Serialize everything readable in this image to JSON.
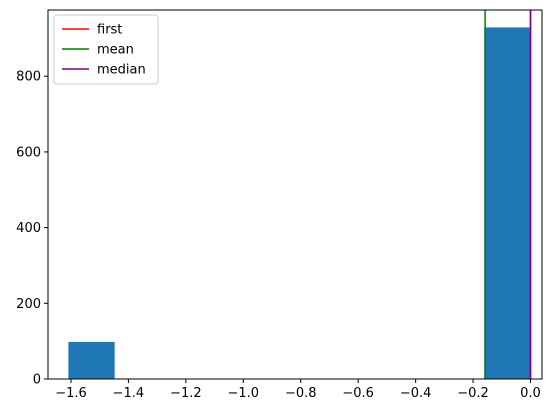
{
  "chart_data": {
    "type": "bar",
    "title": "",
    "xlabel": "",
    "ylabel": "",
    "xlim": [
      -1.68,
      0.04
    ],
    "ylim": [
      0,
      975
    ],
    "grid": false,
    "bar_color": "#1f77b4",
    "bins": [
      {
        "x_start": -1.609,
        "x_end": -1.448,
        "count": 98
      },
      {
        "x_start": -1.448,
        "x_end": -1.287,
        "count": 0
      },
      {
        "x_start": -1.287,
        "x_end": -1.126,
        "count": 0
      },
      {
        "x_start": -1.126,
        "x_end": -0.965,
        "count": 0
      },
      {
        "x_start": -0.965,
        "x_end": -0.805,
        "count": 0
      },
      {
        "x_start": -0.805,
        "x_end": -0.644,
        "count": 0
      },
      {
        "x_start": -0.644,
        "x_end": -0.483,
        "count": 0
      },
      {
        "x_start": -0.483,
        "x_end": -0.322,
        "count": 0
      },
      {
        "x_start": -0.322,
        "x_end": -0.161,
        "count": 0
      },
      {
        "x_start": -0.161,
        "x_end": 0.0,
        "count": 929
      }
    ],
    "x_ticks": [
      {
        "value": -1.6,
        "label": "−1.6"
      },
      {
        "value": -1.4,
        "label": "−1.4"
      },
      {
        "value": -1.2,
        "label": "−1.2"
      },
      {
        "value": -1.0,
        "label": "−1.0"
      },
      {
        "value": -0.8,
        "label": "−0.8"
      },
      {
        "value": -0.6,
        "label": "−0.6"
      },
      {
        "value": -0.4,
        "label": "−0.4"
      },
      {
        "value": -0.2,
        "label": "−0.2"
      },
      {
        "value": 0.0,
        "label": "0.0"
      }
    ],
    "y_ticks": [
      {
        "value": 0,
        "label": "0"
      },
      {
        "value": 200,
        "label": "200"
      },
      {
        "value": 400,
        "label": "400"
      },
      {
        "value": 600,
        "label": "600"
      },
      {
        "value": 800,
        "label": "800"
      }
    ],
    "vlines": [
      {
        "name": "first",
        "x": 0.0,
        "color": "#ff0000"
      },
      {
        "name": "mean",
        "x": -0.158,
        "color": "#008000"
      },
      {
        "name": "median",
        "x": 0.0,
        "color": "#800080"
      }
    ],
    "legend": {
      "placement": "top-left",
      "entries": [
        {
          "label": "first",
          "color": "#ff0000"
        },
        {
          "label": "mean",
          "color": "#008000"
        },
        {
          "label": "median",
          "color": "#800080"
        }
      ]
    }
  }
}
